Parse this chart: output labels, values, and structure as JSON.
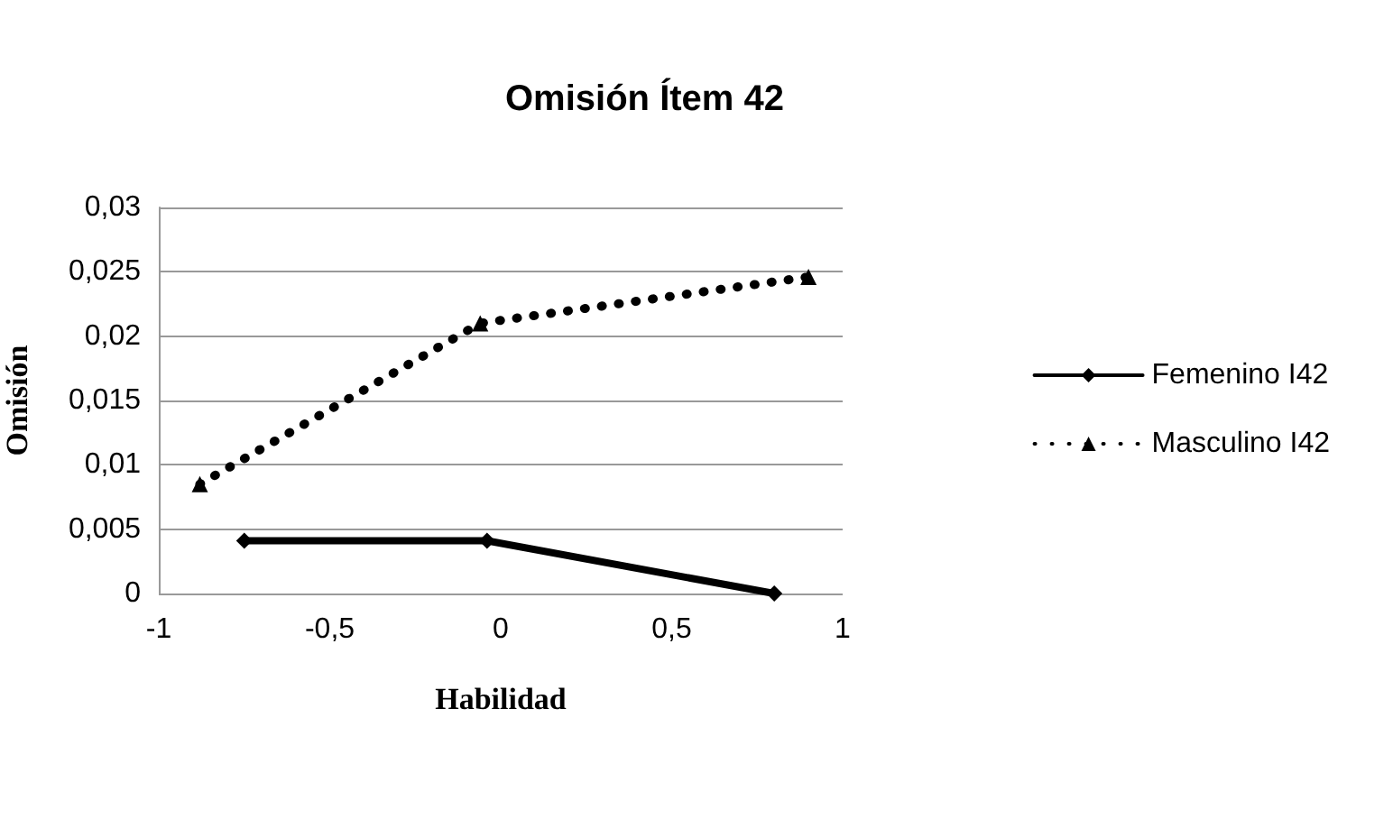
{
  "chart_data": {
    "type": "line",
    "title": "Omisión Ítem 42",
    "xlabel": "Habilidad",
    "ylabel": "Omisión",
    "xlim": [
      -1,
      1
    ],
    "xticks": [
      -1,
      {
        "value": -0.5,
        "label": "-0,5"
      },
      0,
      {
        "value": 0.5,
        "label": "0,5"
      },
      1
    ],
    "ylim": [
      0,
      0.03
    ],
    "yticks": [
      0,
      {
        "value": 0.005,
        "label": "0,005"
      },
      {
        "value": 0.01,
        "label": "0,01"
      },
      {
        "value": 0.015,
        "label": "0,015"
      },
      {
        "value": 0.02,
        "label": "0,02"
      },
      {
        "value": 0.025,
        "label": "0,025"
      },
      {
        "value": 0.03,
        "label": "0,03"
      }
    ],
    "grid": "y",
    "legend": "right",
    "series": [
      {
        "name": "Femenino I42",
        "color": "#000000",
        "marker": "diamond",
        "line_style": "solid",
        "x": [
          -0.75,
          -0.04,
          0.8
        ],
        "values": [
          0.0041,
          0.0041,
          0
        ]
      },
      {
        "name": "Masculino I42",
        "color": "#000000",
        "marker": "triangle",
        "line_style": "dotted",
        "x": [
          -0.88,
          -0.06,
          0.9
        ],
        "values": [
          0.0085,
          0.021,
          0.0246
        ]
      }
    ]
  }
}
